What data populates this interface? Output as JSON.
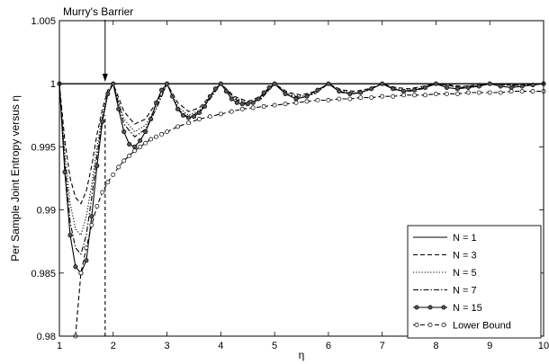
{
  "chart_data": {
    "type": "line",
    "title": "",
    "xlabel": "η",
    "ylabel": "Per Sample Joint Entropy versus η",
    "xlim": [
      1,
      10
    ],
    "ylim": [
      0.98,
      1.005
    ],
    "xticks": [
      "1",
      "2",
      "3",
      "4",
      "5",
      "6",
      "7",
      "8",
      "9",
      "10"
    ],
    "yticks": [
      "0.98",
      "0.985",
      "0.99",
      "0.995",
      "1",
      "1.005"
    ],
    "grid": true,
    "legend_position": "lower-right",
    "annotation": {
      "text": "Murry's Barrier",
      "x": 1.85
    },
    "series": [
      {
        "name": "N = 1",
        "style": "solid",
        "marker": "none",
        "x": [
          1,
          10
        ],
        "y": [
          1.0,
          1.0
        ]
      },
      {
        "name": "N = 3",
        "style": "dashed",
        "marker": "none",
        "x": [
          1,
          1.1,
          1.2,
          1.3,
          1.4,
          1.5,
          1.6,
          1.7,
          1.8,
          1.9,
          2.0,
          2.2,
          2.4,
          2.6,
          2.8,
          3.0,
          3.2,
          3.4,
          3.6,
          3.8,
          4.0,
          4.25,
          4.5,
          4.75,
          5.0,
          5.25,
          5.5,
          5.75,
          6.0,
          6.25,
          6.5,
          6.75,
          7.0,
          7.25,
          7.5,
          7.75,
          8.0,
          8.5,
          9.0,
          9.5,
          10.0
        ],
        "y": [
          1.0,
          0.9955,
          0.9925,
          0.991,
          0.9905,
          0.9915,
          0.9935,
          0.996,
          0.998,
          0.9995,
          1.0,
          0.9978,
          0.9968,
          0.9972,
          0.9985,
          1.0,
          0.9985,
          0.9978,
          0.9981,
          0.999,
          1.0,
          0.999,
          0.9986,
          0.999,
          1.0,
          0.9993,
          0.9991,
          0.9994,
          1.0,
          0.9995,
          0.9994,
          0.9996,
          1.0,
          0.9997,
          0.9996,
          0.9998,
          1.0,
          0.9998,
          1.0,
          0.9999,
          1.0
        ]
      },
      {
        "name": "N = 5",
        "style": "dotted",
        "marker": "none",
        "x": [
          1,
          1.1,
          1.2,
          1.3,
          1.4,
          1.5,
          1.6,
          1.7,
          1.8,
          1.9,
          2.0,
          2.2,
          2.4,
          2.6,
          2.8,
          3.0,
          3.2,
          3.4,
          3.6,
          3.8,
          4.0,
          4.25,
          4.5,
          4.75,
          5.0,
          5.25,
          5.5,
          5.75,
          6.0,
          6.25,
          6.5,
          6.75,
          7.0,
          7.25,
          7.5,
          7.75,
          8.0,
          8.5,
          9.0,
          9.5,
          10.0
        ],
        "y": [
          1.0,
          0.9945,
          0.9905,
          0.9885,
          0.988,
          0.9895,
          0.992,
          0.995,
          0.9975,
          0.9993,
          1.0,
          0.9972,
          0.9962,
          0.9967,
          0.9982,
          1.0,
          0.9982,
          0.9975,
          0.9979,
          0.9989,
          1.0,
          0.9989,
          0.9985,
          0.9989,
          1.0,
          0.9992,
          0.999,
          0.9993,
          1.0,
          0.9994,
          0.9993,
          0.9995,
          1.0,
          0.9996,
          0.9995,
          0.9997,
          1.0,
          0.9997,
          1.0,
          0.9999,
          1.0
        ]
      },
      {
        "name": "N = 7",
        "style": "dashdot",
        "marker": "none",
        "x": [
          1,
          1.1,
          1.2,
          1.3,
          1.4,
          1.5,
          1.6,
          1.7,
          1.8,
          1.9,
          2.0,
          2.2,
          2.4,
          2.6,
          2.8,
          3.0,
          3.2,
          3.4,
          3.6,
          3.8,
          4.0,
          4.25,
          4.5,
          4.75,
          5.0,
          5.25,
          5.5,
          5.75,
          6.0,
          6.25,
          6.5,
          6.75,
          7.0,
          7.25,
          7.5,
          7.75,
          8.0,
          8.5,
          9.0,
          9.5,
          10.0
        ],
        "y": [
          1.0,
          0.9938,
          0.989,
          0.987,
          0.9865,
          0.988,
          0.991,
          0.9943,
          0.9972,
          0.9992,
          1.0,
          0.9968,
          0.9958,
          0.9964,
          0.998,
          1.0,
          0.998,
          0.9973,
          0.9978,
          0.9988,
          1.0,
          0.9988,
          0.9984,
          0.9988,
          1.0,
          0.9991,
          0.9989,
          0.9992,
          1.0,
          0.9993,
          0.9992,
          0.9995,
          1.0,
          0.9995,
          0.9994,
          0.9996,
          1.0,
          0.9997,
          1.0,
          0.9998,
          1.0
        ]
      },
      {
        "name": "N = 15",
        "style": "solid",
        "marker": "dot",
        "x": [
          1,
          1.1,
          1.2,
          1.3,
          1.4,
          1.5,
          1.6,
          1.7,
          1.8,
          1.9,
          2.0,
          2.1,
          2.2,
          2.3,
          2.4,
          2.5,
          2.6,
          2.7,
          2.8,
          2.9,
          3.0,
          3.1,
          3.2,
          3.3,
          3.4,
          3.5,
          3.6,
          3.7,
          3.8,
          3.9,
          4.0,
          4.1,
          4.2,
          4.3,
          4.4,
          4.5,
          4.6,
          4.7,
          4.8,
          4.9,
          5.0,
          5.2,
          5.4,
          5.6,
          5.8,
          6.0,
          6.2,
          6.4,
          6.6,
          6.8,
          7.0,
          7.2,
          7.4,
          7.6,
          7.8,
          8.0,
          8.2,
          8.4,
          8.6,
          8.8,
          9.0,
          9.2,
          9.4,
          9.6,
          9.8,
          10.0
        ],
        "y": [
          1.0,
          0.993,
          0.988,
          0.9855,
          0.985,
          0.986,
          0.9895,
          0.9935,
          0.997,
          0.9992,
          1.0,
          0.998,
          0.9962,
          0.9952,
          0.995,
          0.9955,
          0.9962,
          0.9972,
          0.9985,
          0.9995,
          1.0,
          0.999,
          0.998,
          0.9975,
          0.9973,
          0.9974,
          0.9977,
          0.9982,
          0.999,
          0.9996,
          1.0,
          0.9994,
          0.9988,
          0.9985,
          0.9984,
          0.9984,
          0.9985,
          0.9988,
          0.9993,
          0.9997,
          1.0,
          0.9992,
          0.9988,
          0.999,
          0.9995,
          1.0,
          0.9994,
          0.9992,
          0.9993,
          0.9996,
          1.0,
          0.9996,
          0.9994,
          0.9995,
          0.9997,
          1.0,
          0.9997,
          0.9996,
          0.9997,
          0.9998,
          1.0,
          0.9998,
          0.9997,
          0.9998,
          0.9999,
          1.0
        ]
      },
      {
        "name": "Lower Bound",
        "style": "dashed",
        "marker": "dot",
        "x": [
          1.3,
          1.4,
          1.5,
          1.6,
          1.7,
          1.8,
          1.9,
          2.0,
          2.1,
          2.2,
          2.3,
          2.4,
          2.5,
          2.6,
          2.7,
          2.8,
          2.9,
          3.0,
          3.2,
          3.4,
          3.6,
          3.8,
          4.0,
          4.2,
          4.4,
          4.6,
          4.8,
          5.0,
          5.2,
          5.4,
          5.6,
          5.8,
          6.0,
          6.2,
          6.4,
          6.6,
          6.8,
          7.0,
          7.2,
          7.4,
          7.6,
          7.8,
          8.0,
          8.2,
          8.4,
          8.6,
          8.8,
          9.0,
          9.2,
          9.4,
          9.6,
          9.8,
          10.0
        ],
        "y": [
          0.98,
          0.985,
          0.987,
          0.9888,
          0.9903,
          0.9914,
          0.9922,
          0.9928,
          0.9934,
          0.9939,
          0.9943,
          0.9947,
          0.995,
          0.9953,
          0.9956,
          0.9958,
          0.996,
          0.9962,
          0.9966,
          0.9969,
          0.9972,
          0.9974,
          0.9976,
          0.9978,
          0.998,
          0.9981,
          0.9982,
          0.9983,
          0.9984,
          0.9985,
          0.9986,
          0.9987,
          0.9987,
          0.9988,
          0.9988,
          0.9989,
          0.9989,
          0.999,
          0.999,
          0.9991,
          0.9991,
          0.9991,
          0.9992,
          0.9992,
          0.9992,
          0.9993,
          0.9993,
          0.9993,
          0.9993,
          0.9994,
          0.9994,
          0.9994,
          0.9994
        ]
      }
    ]
  }
}
